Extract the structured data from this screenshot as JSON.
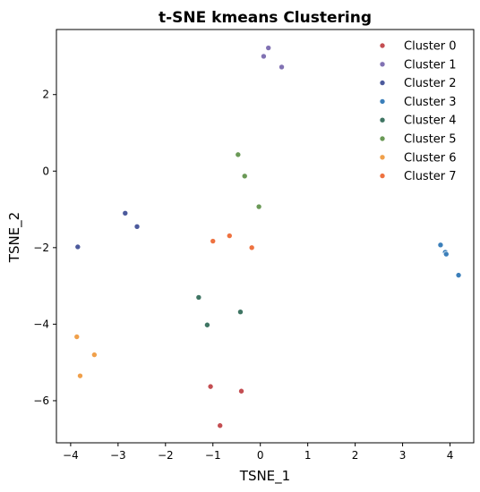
{
  "chart_data": {
    "type": "scatter",
    "title": "t-SNE kmeans Clustering",
    "title_color": "#000080",
    "xlabel": "TSNE_1",
    "ylabel": "TSNE_2",
    "xlim": [
      -4.3,
      4.5
    ],
    "ylim": [
      -7.1,
      3.7
    ],
    "xticks": [
      -4,
      -3,
      -2,
      -1,
      0,
      1,
      2,
      3,
      4
    ],
    "yticks": [
      -6,
      -4,
      -2,
      0,
      2
    ],
    "grid": false,
    "legend_position": "top-right",
    "series": [
      {
        "name": "Cluster 0",
        "color": "#c44e52",
        "points": [
          [
            -1.05,
            -5.63
          ],
          [
            -0.4,
            -5.75
          ],
          [
            -0.85,
            -6.65
          ]
        ]
      },
      {
        "name": "Cluster 1",
        "color": "#8172b3",
        "points": [
          [
            0.17,
            3.22
          ],
          [
            0.07,
            3.0
          ],
          [
            0.45,
            2.72
          ]
        ]
      },
      {
        "name": "Cluster 2",
        "color": "#4c5a9c",
        "points": [
          [
            -2.85,
            -1.1
          ],
          [
            -2.6,
            -1.45
          ],
          [
            -3.85,
            -1.98
          ]
        ]
      },
      {
        "name": "Cluster 3",
        "color": "#3b7fba",
        "points": [
          [
            3.8,
            -1.93
          ],
          [
            3.9,
            -2.12
          ],
          [
            3.92,
            -2.17
          ],
          [
            4.18,
            -2.72
          ]
        ]
      },
      {
        "name": "Cluster 4",
        "color": "#3f7563",
        "points": [
          [
            -1.3,
            -3.3
          ],
          [
            -1.12,
            -4.02
          ],
          [
            -0.42,
            -3.68
          ]
        ]
      },
      {
        "name": "Cluster 5",
        "color": "#6a9956",
        "points": [
          [
            -0.47,
            0.43
          ],
          [
            -0.33,
            -0.13
          ],
          [
            -0.03,
            -0.93
          ]
        ]
      },
      {
        "name": "Cluster 6",
        "color": "#f0a04b",
        "points": [
          [
            -3.87,
            -4.33
          ],
          [
            -3.5,
            -4.8
          ],
          [
            -3.8,
            -5.35
          ]
        ]
      },
      {
        "name": "Cluster 7",
        "color": "#ee7240",
        "points": [
          [
            -1.0,
            -1.83
          ],
          [
            -0.65,
            -1.69
          ],
          [
            -0.18,
            -2.0
          ]
        ]
      }
    ]
  }
}
